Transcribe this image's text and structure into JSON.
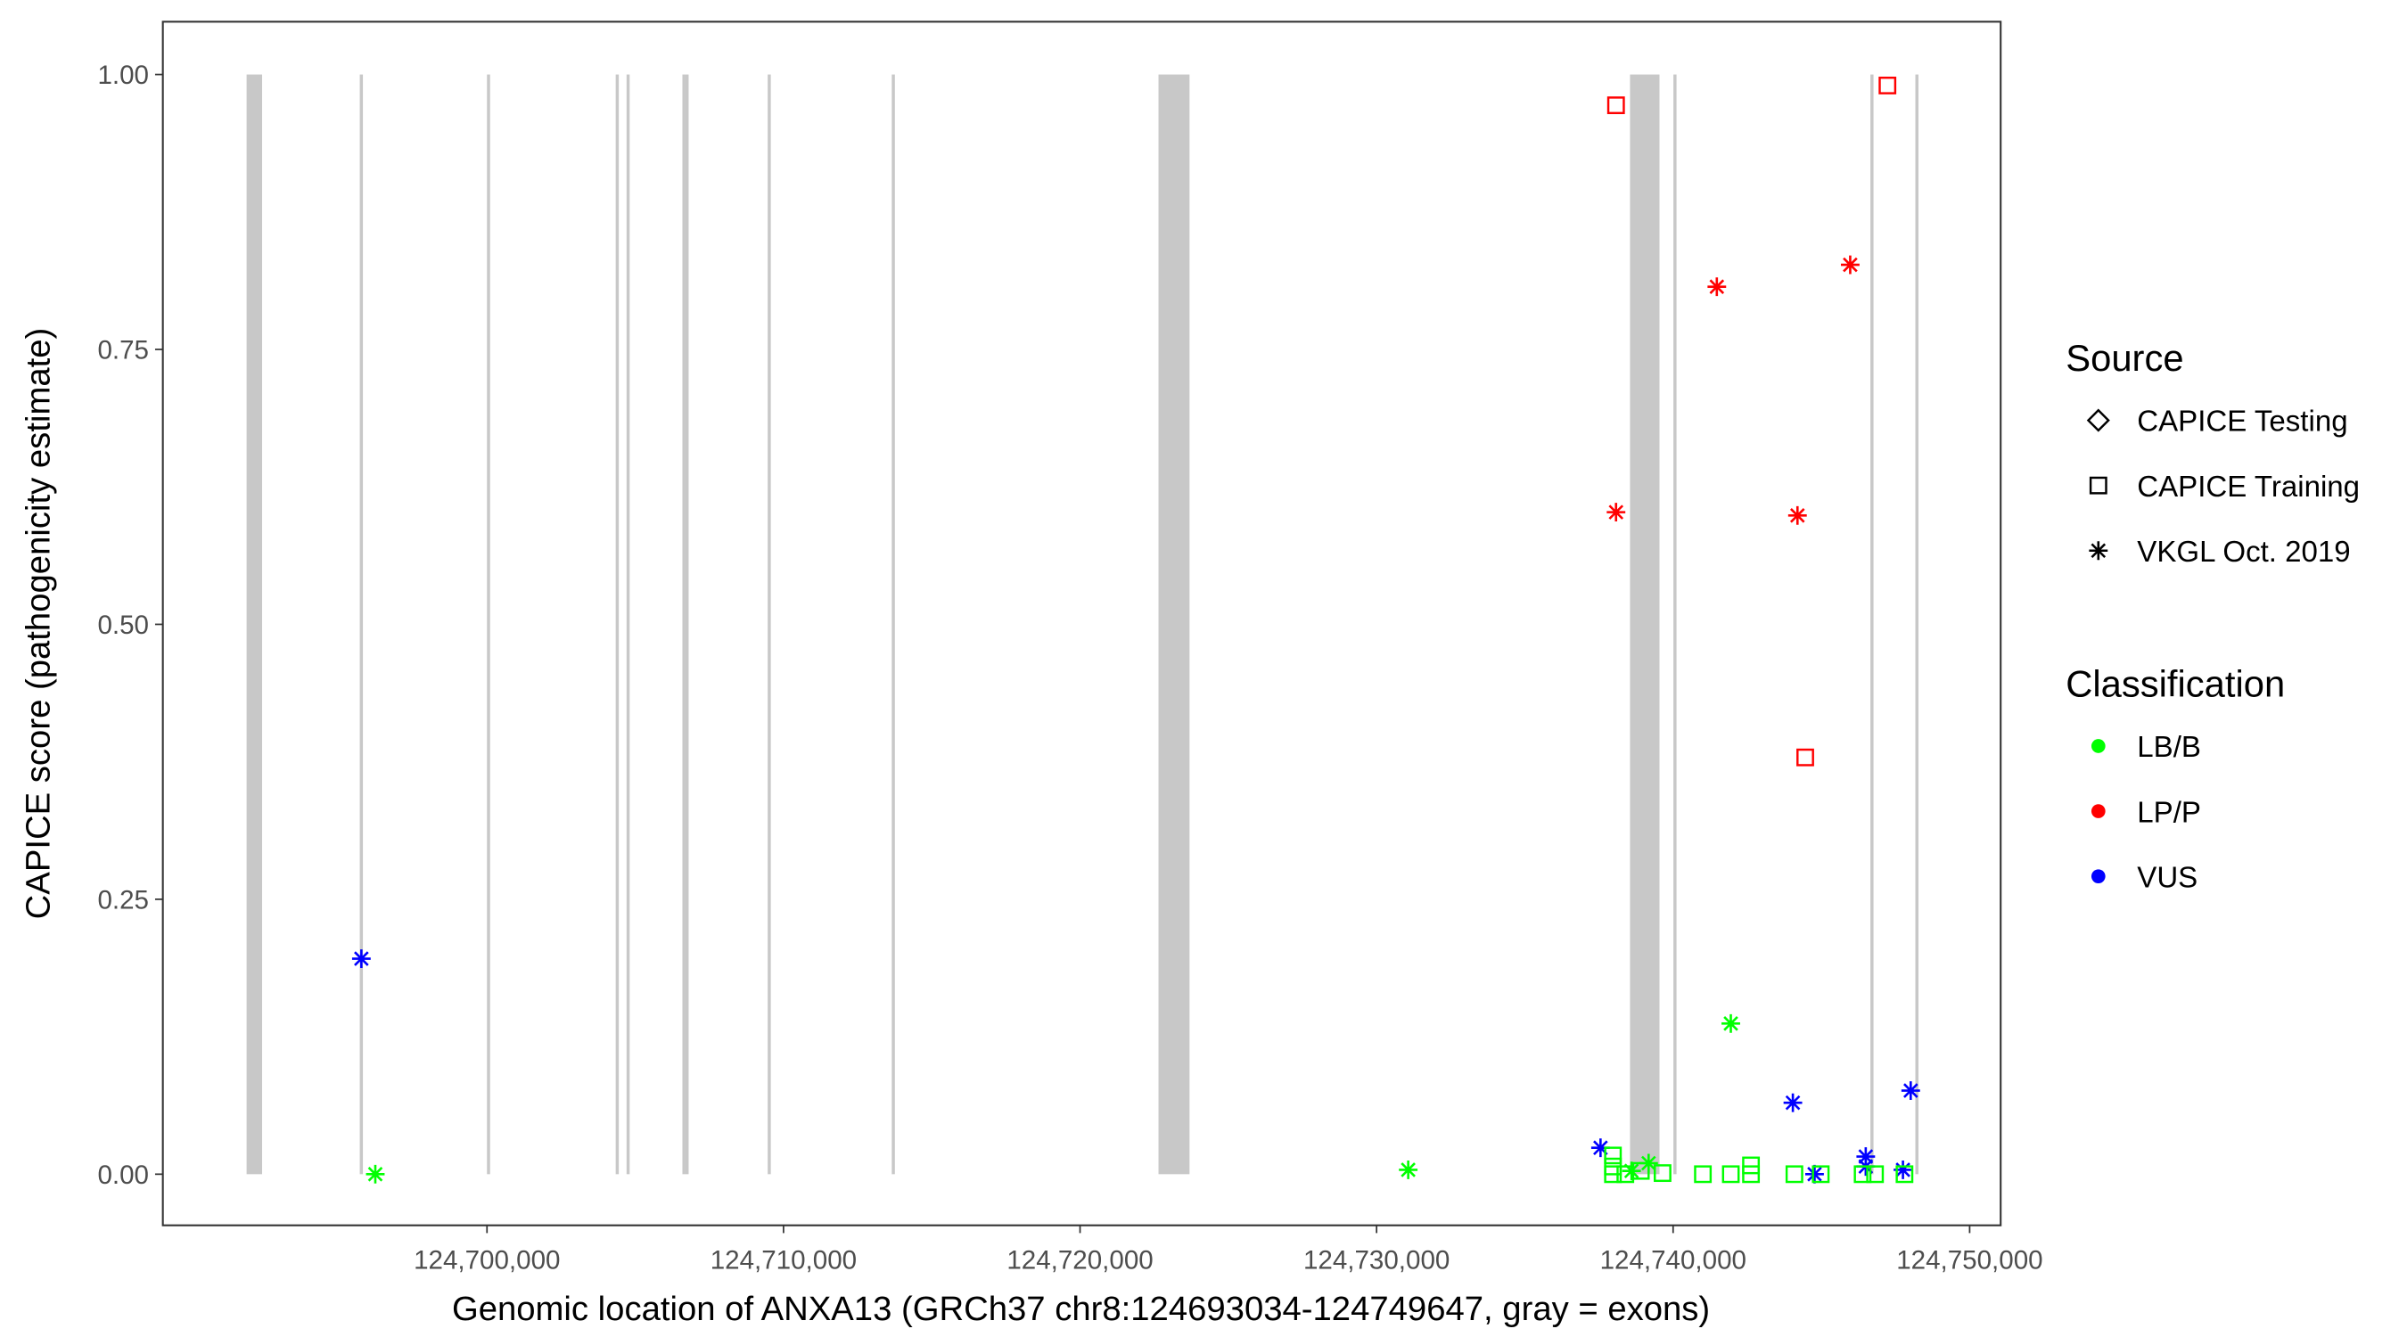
{
  "chart_data": {
    "type": "scatter",
    "x_label": "Genomic location of ANXA13 (GRCh37 chr8:124693034-124749647, gray = exons)",
    "y_label": "CAPICE score (pathogenicity estimate)",
    "xlim": [
      124689069,
      124751046
    ],
    "ylim": [
      -0.0465,
      1.048
    ],
    "xticks": [
      {
        "value": 124700000,
        "label": "124,700,000"
      },
      {
        "value": 124710000,
        "label": "124,710,000"
      },
      {
        "value": 124720000,
        "label": "124,720,000"
      },
      {
        "value": 124730000,
        "label": "124,730,000"
      },
      {
        "value": 124740000,
        "label": "124,740,000"
      },
      {
        "value": 124750000,
        "label": "124,750,000"
      }
    ],
    "yticks": [
      {
        "value": 0,
        "label": "0.00"
      },
      {
        "value": 0.25,
        "label": "0.25"
      },
      {
        "value": 0.5,
        "label": "0.50"
      },
      {
        "value": 0.75,
        "label": "0.75"
      },
      {
        "value": 1,
        "label": "1.00"
      }
    ],
    "exon_color": "#c8c8c8",
    "exons": [
      [
        124691893,
        124692416
      ],
      [
        124695711,
        124695761
      ],
      [
        124700000,
        124700050
      ],
      [
        124704341,
        124704391
      ],
      [
        124704707,
        124704757
      ],
      [
        124706590,
        124706640
      ],
      [
        124706695,
        124706745
      ],
      [
        124709467,
        124709517
      ],
      [
        124713651,
        124713701
      ],
      [
        124722646,
        124723692
      ],
      [
        124738546,
        124739540
      ],
      [
        124740010,
        124740060
      ],
      [
        124746653,
        124746703
      ],
      [
        124748169,
        124748219
      ]
    ],
    "source_legend": {
      "title": "Source",
      "items": [
        {
          "name": "CAPICE Testing",
          "shape": "diamond"
        },
        {
          "name": "CAPICE Training",
          "shape": "square"
        },
        {
          "name": "VKGL Oct. 2019",
          "shape": "asterisk"
        }
      ]
    },
    "class_legend": {
      "title": "Classification",
      "items": [
        {
          "name": "LB/B",
          "color": "#00ff00"
        },
        {
          "name": "LP/P",
          "color": "#ff0000"
        },
        {
          "name": "VUS",
          "color": "#0000ff"
        }
      ]
    },
    "series": [
      {
        "shape": "asterisk",
        "color": "#ff0000",
        "x": [
          124741474,
          124745972,
          124738075,
          124744194
        ],
        "y": [
          0.807,
          0.827,
          0.602,
          0.599
        ]
      },
      {
        "shape": "square",
        "color": "#ff0000",
        "x": [
          124738075,
          124747228,
          124744456
        ],
        "y": [
          0.972,
          0.99,
          0.379
        ]
      },
      {
        "shape": "asterisk",
        "color": "#0000ff",
        "x": [
          124695764,
          124737552,
          124744038,
          124748013,
          124744770,
          124746496,
          124746496,
          124747751
        ],
        "y": [
          0.196,
          0.024,
          0.065,
          0.076,
          0,
          0.016,
          0.007,
          0.004
        ]
      },
      {
        "shape": "asterisk",
        "color": "#00ff00",
        "x": [
          124696234,
          124731067,
          124741946,
          124739174,
          124738598
        ],
        "y": [
          0,
          0.004,
          0.137,
          0.01,
          0.003
        ]
      },
      {
        "shape": "square",
        "color": "#00ff00",
        "x": [
          124737971,
          124737971,
          124737971,
          124738389,
          124738912,
          124739644,
          124741004,
          124741946,
          124742626,
          124742626,
          124744090,
          124744979,
          124746391,
          124746809,
          124747803
        ],
        "y": [
          0.017,
          0.007,
          0,
          0,
          0.003,
          0.001,
          0,
          0,
          0.008,
          0,
          0,
          0,
          0,
          0,
          0
        ]
      }
    ]
  }
}
